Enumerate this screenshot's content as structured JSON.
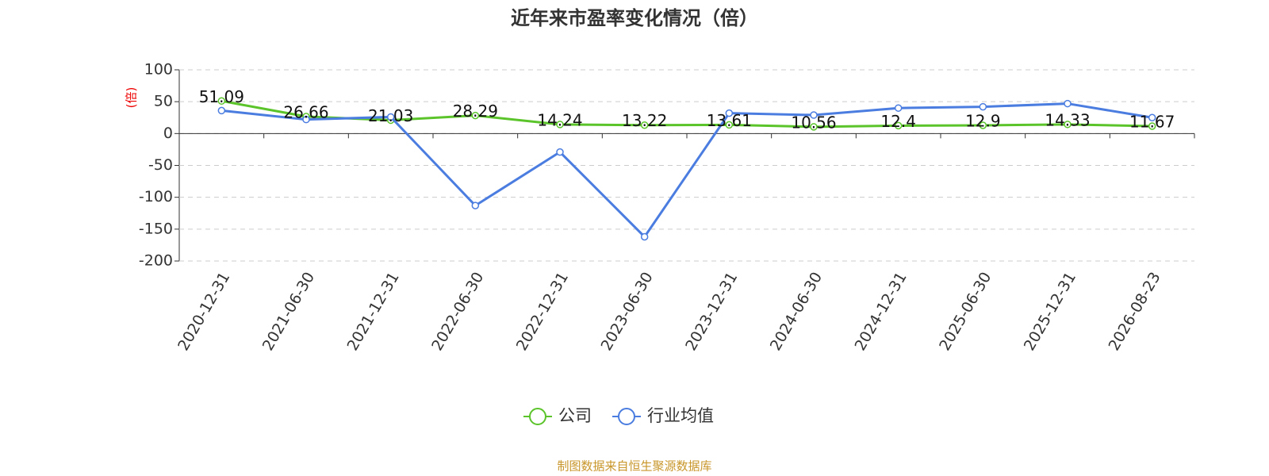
{
  "chart_data": {
    "type": "line",
    "title": "近年来市盈率变化情况（倍）",
    "y_label": "(倍)",
    "source": "制图数据来自恒生聚源数据库",
    "categories": [
      "2020-12-31",
      "2021-06-30",
      "2021-12-31",
      "2022-06-30",
      "2022-12-31",
      "2023-06-30",
      "2023-12-31",
      "2024-06-30",
      "2024-12-31",
      "2025-06-30",
      "2025-12-31",
      "2026-08-23"
    ],
    "series": [
      {
        "name": "公司",
        "color": "#5bc42b",
        "values": [
          51.09,
          26.66,
          21.03,
          28.29,
          14.24,
          13.22,
          13.61,
          10.56,
          12.4,
          12.9,
          14.33,
          11.67
        ],
        "show_labels": true
      },
      {
        "name": "行业均值",
        "color": "#4b7de0",
        "values": [
          36,
          22,
          26,
          -113,
          -29,
          -162,
          32,
          29,
          40,
          42,
          47,
          25
        ],
        "show_labels": false
      }
    ],
    "ylim": [
      -200,
      100
    ],
    "yticks": [
      -200,
      -150,
      -100,
      -50,
      0,
      50,
      100
    ],
    "grid": true
  }
}
